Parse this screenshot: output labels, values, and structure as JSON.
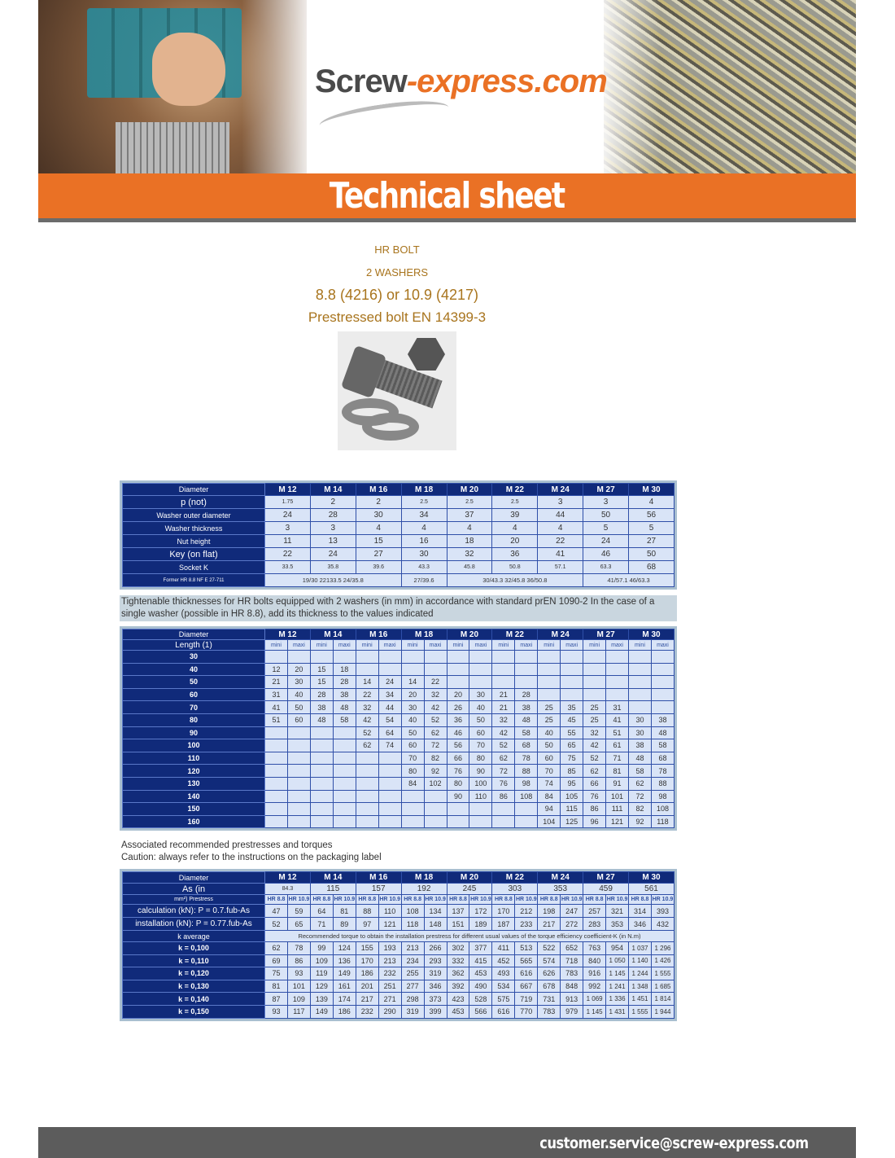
{
  "header": {
    "logo_main": "Screw",
    "logo_accent": "-express.com",
    "banner_title": "Technical sheet"
  },
  "product": {
    "line1": "HR BOLT",
    "line2": "2 WASHERS",
    "line3": "8.8 (4216) or 10.9 (4217)",
    "line4": "Prestressed bolt EN 14399-3"
  },
  "diameters": [
    "M 12",
    "M 14",
    "M 16",
    "M 18",
    "M 20",
    "M 22",
    "M 24",
    "M 27",
    "M 30"
  ],
  "table1": {
    "header_label": "Diameter",
    "rows": [
      {
        "label": "p (not)",
        "values": [
          "1.75",
          "2",
          "2",
          "2.5",
          "2.5",
          "2.5",
          "3",
          "3",
          "4"
        ]
      },
      {
        "label": "Washer outer diameter",
        "values": [
          "24",
          "28",
          "30",
          "34",
          "37",
          "39",
          "44",
          "50",
          "56"
        ]
      },
      {
        "label": "Washer thickness",
        "values": [
          "3",
          "3",
          "4",
          "4",
          "4",
          "4",
          "4",
          "5",
          "5"
        ]
      },
      {
        "label": "Nut height",
        "values": [
          "11",
          "13",
          "15",
          "16",
          "18",
          "20",
          "22",
          "24",
          "27"
        ]
      },
      {
        "label": "Key (on flat)",
        "values": [
          "22",
          "24",
          "27",
          "30",
          "32",
          "36",
          "41",
          "46",
          "50"
        ]
      },
      {
        "label": "Socket K",
        "values": [
          "33.5",
          "35.8",
          "39.6",
          "43.3",
          "45.8",
          "50.8",
          "57.1",
          "63.3",
          "68"
        ]
      }
    ],
    "former": {
      "label": "Former HR 8.8 NF E 27-711",
      "groups": [
        {
          "text": "19/30 22133.5 24/35.8",
          "span": 3
        },
        {
          "text": "27/39.6",
          "span": 1
        },
        {
          "text": "30/43.3 32/45.8 36/50.8",
          "span": 3
        },
        {
          "text": "41/57.1 46/63.3",
          "span": 2
        }
      ]
    }
  },
  "note1": "Tightenable thicknesses for HR bolts equipped with 2 washers (in mm) in accordance with standard prEN 1090-2 In the case of a single washer (possible in HR 8.8), add its thickness to the values indicated",
  "table2": {
    "header_label": "Diameter",
    "length_label": "Length (1)",
    "mini": "mini",
    "maxi": "maxi",
    "rows": [
      {
        "length": "30",
        "values": [
          "",
          "",
          "",
          "",
          "",
          "",
          "",
          "",
          "",
          "",
          "",
          "",
          "",
          "",
          "",
          "",
          "",
          ""
        ]
      },
      {
        "length": "40",
        "values": [
          "12",
          "20",
          "15",
          "18",
          "",
          "",
          "",
          "",
          "",
          "",
          "",
          "",
          "",
          "",
          "",
          "",
          "",
          ""
        ]
      },
      {
        "length": "50",
        "values": [
          "21",
          "30",
          "15",
          "28",
          "14",
          "24",
          "14",
          "22",
          "",
          "",
          "",
          "",
          "",
          "",
          "",
          "",
          "",
          ""
        ]
      },
      {
        "length": "60",
        "values": [
          "31",
          "40",
          "28",
          "38",
          "22",
          "34",
          "20",
          "32",
          "20",
          "30",
          "21",
          "28",
          "",
          "",
          "",
          "",
          "",
          ""
        ]
      },
      {
        "length": "70",
        "values": [
          "41",
          "50",
          "38",
          "48",
          "32",
          "44",
          "30",
          "42",
          "26",
          "40",
          "21",
          "38",
          "25",
          "35",
          "25",
          "31",
          "",
          ""
        ]
      },
      {
        "length": "80",
        "values": [
          "51",
          "60",
          "48",
          "58",
          "42",
          "54",
          "40",
          "52",
          "36",
          "50",
          "32",
          "48",
          "25",
          "45",
          "25",
          "41",
          "30",
          "38"
        ]
      },
      {
        "length": "90",
        "values": [
          "",
          "",
          "",
          "",
          "52",
          "64",
          "50",
          "62",
          "46",
          "60",
          "42",
          "58",
          "40",
          "55",
          "32",
          "51",
          "30",
          "48"
        ]
      },
      {
        "length": "100",
        "values": [
          "",
          "",
          "",
          "",
          "62",
          "74",
          "60",
          "72",
          "56",
          "70",
          "52",
          "68",
          "50",
          "65",
          "42",
          "61",
          "38",
          "58"
        ]
      },
      {
        "length": "110",
        "values": [
          "",
          "",
          "",
          "",
          "",
          "",
          "70",
          "82",
          "66",
          "80",
          "62",
          "78",
          "60",
          "75",
          "52",
          "71",
          "48",
          "68"
        ]
      },
      {
        "length": "120",
        "values": [
          "",
          "",
          "",
          "",
          "",
          "",
          "80",
          "92",
          "76",
          "90",
          "72",
          "88",
          "70",
          "85",
          "62",
          "81",
          "58",
          "78"
        ]
      },
      {
        "length": "130",
        "values": [
          "",
          "",
          "",
          "",
          "",
          "",
          "84",
          "102",
          "80",
          "100",
          "76",
          "98",
          "74",
          "95",
          "66",
          "91",
          "62",
          "88"
        ]
      },
      {
        "length": "140",
        "values": [
          "",
          "",
          "",
          "",
          "",
          "",
          "",
          "",
          "90",
          "110",
          "86",
          "108",
          "84",
          "105",
          "76",
          "101",
          "72",
          "98"
        ]
      },
      {
        "length": "150",
        "values": [
          "",
          "",
          "",
          "",
          "",
          "",
          "",
          "",
          "",
          "",
          "",
          "",
          "94",
          "115",
          "86",
          "111",
          "82",
          "108"
        ]
      },
      {
        "length": "160",
        "values": [
          "",
          "",
          "",
          "",
          "",
          "",
          "",
          "",
          "",
          "",
          "",
          "",
          "104",
          "125",
          "96",
          "121",
          "92",
          "118"
        ]
      }
    ]
  },
  "note2": {
    "line1": "Associated recommended prestresses and torques",
    "line2": "Caution: always refer to the instructions on the packaging label"
  },
  "table3": {
    "header_label": "Diameter",
    "as_label": "As (in",
    "prestress_label": "mm²) Prestress",
    "as_values": [
      "84.3",
      "115",
      "157",
      "192",
      "245",
      "303",
      "353",
      "459",
      "561"
    ],
    "grades": [
      "HR 8.8",
      "HR 10.9"
    ],
    "calc_label": "calculation (kN): P = 0.7.fub-As",
    "calc_values": [
      "47",
      "59",
      "64",
      "81",
      "88",
      "110",
      "108",
      "134",
      "137",
      "172",
      "170",
      "212",
      "198",
      "247",
      "257",
      "321",
      "314",
      "393"
    ],
    "inst_label": "installation (kN): P = 0.77.fub-As",
    "inst_values": [
      "52",
      "65",
      "71",
      "89",
      "97",
      "121",
      "118",
      "148",
      "151",
      "189",
      "187",
      "233",
      "217",
      "272",
      "283",
      "353",
      "346",
      "432"
    ],
    "k_label": "k average",
    "k_note": "Recommended torque to obtain the installation prestress for different usual values of the torque efficiency coefficient-K (in N.m)",
    "k_rows": [
      {
        "label": "k = 0,100",
        "values": [
          "62",
          "78",
          "99",
          "124",
          "155",
          "193",
          "213",
          "266",
          "302",
          "377",
          "411",
          "513",
          "522",
          "652",
          "763",
          "954",
          "1 037",
          "1 296"
        ]
      },
      {
        "label": "k = 0,110",
        "values": [
          "69",
          "86",
          "109",
          "136",
          "170",
          "213",
          "234",
          "293",
          "332",
          "415",
          "452",
          "565",
          "574",
          "718",
          "840",
          "1 050",
          "1 140",
          "1 426"
        ]
      },
      {
        "label": "k = 0,120",
        "values": [
          "75",
          "93",
          "119",
          "149",
          "186",
          "232",
          "255",
          "319",
          "362",
          "453",
          "493",
          "616",
          "626",
          "783",
          "916",
          "1 145",
          "1 244",
          "1 555"
        ]
      },
      {
        "label": "k = 0,130",
        "values": [
          "81",
          "101",
          "129",
          "161",
          "201",
          "251",
          "277",
          "346",
          "392",
          "490",
          "534",
          "667",
          "678",
          "848",
          "992",
          "1 241",
          "1 348",
          "1 685"
        ]
      },
      {
        "label": "k = 0,140",
        "values": [
          "87",
          "109",
          "139",
          "174",
          "217",
          "271",
          "298",
          "373",
          "423",
          "528",
          "575",
          "719",
          "731",
          "913",
          "1 069",
          "1 336",
          "1 451",
          "1 814"
        ]
      },
      {
        "label": "k = 0,150",
        "values": [
          "93",
          "117",
          "149",
          "186",
          "232",
          "290",
          "319",
          "399",
          "453",
          "566",
          "616",
          "770",
          "783",
          "979",
          "1 145",
          "1 431",
          "1 555",
          "1 944"
        ]
      }
    ]
  },
  "footer": {
    "email": "customer.service@screw-express.com"
  },
  "colors": {
    "orange": "#ea7125",
    "navy": "#102a7a",
    "cell": "#d9e4f7",
    "gold_text": "#a8741d",
    "footer": "#5c5c5c"
  }
}
